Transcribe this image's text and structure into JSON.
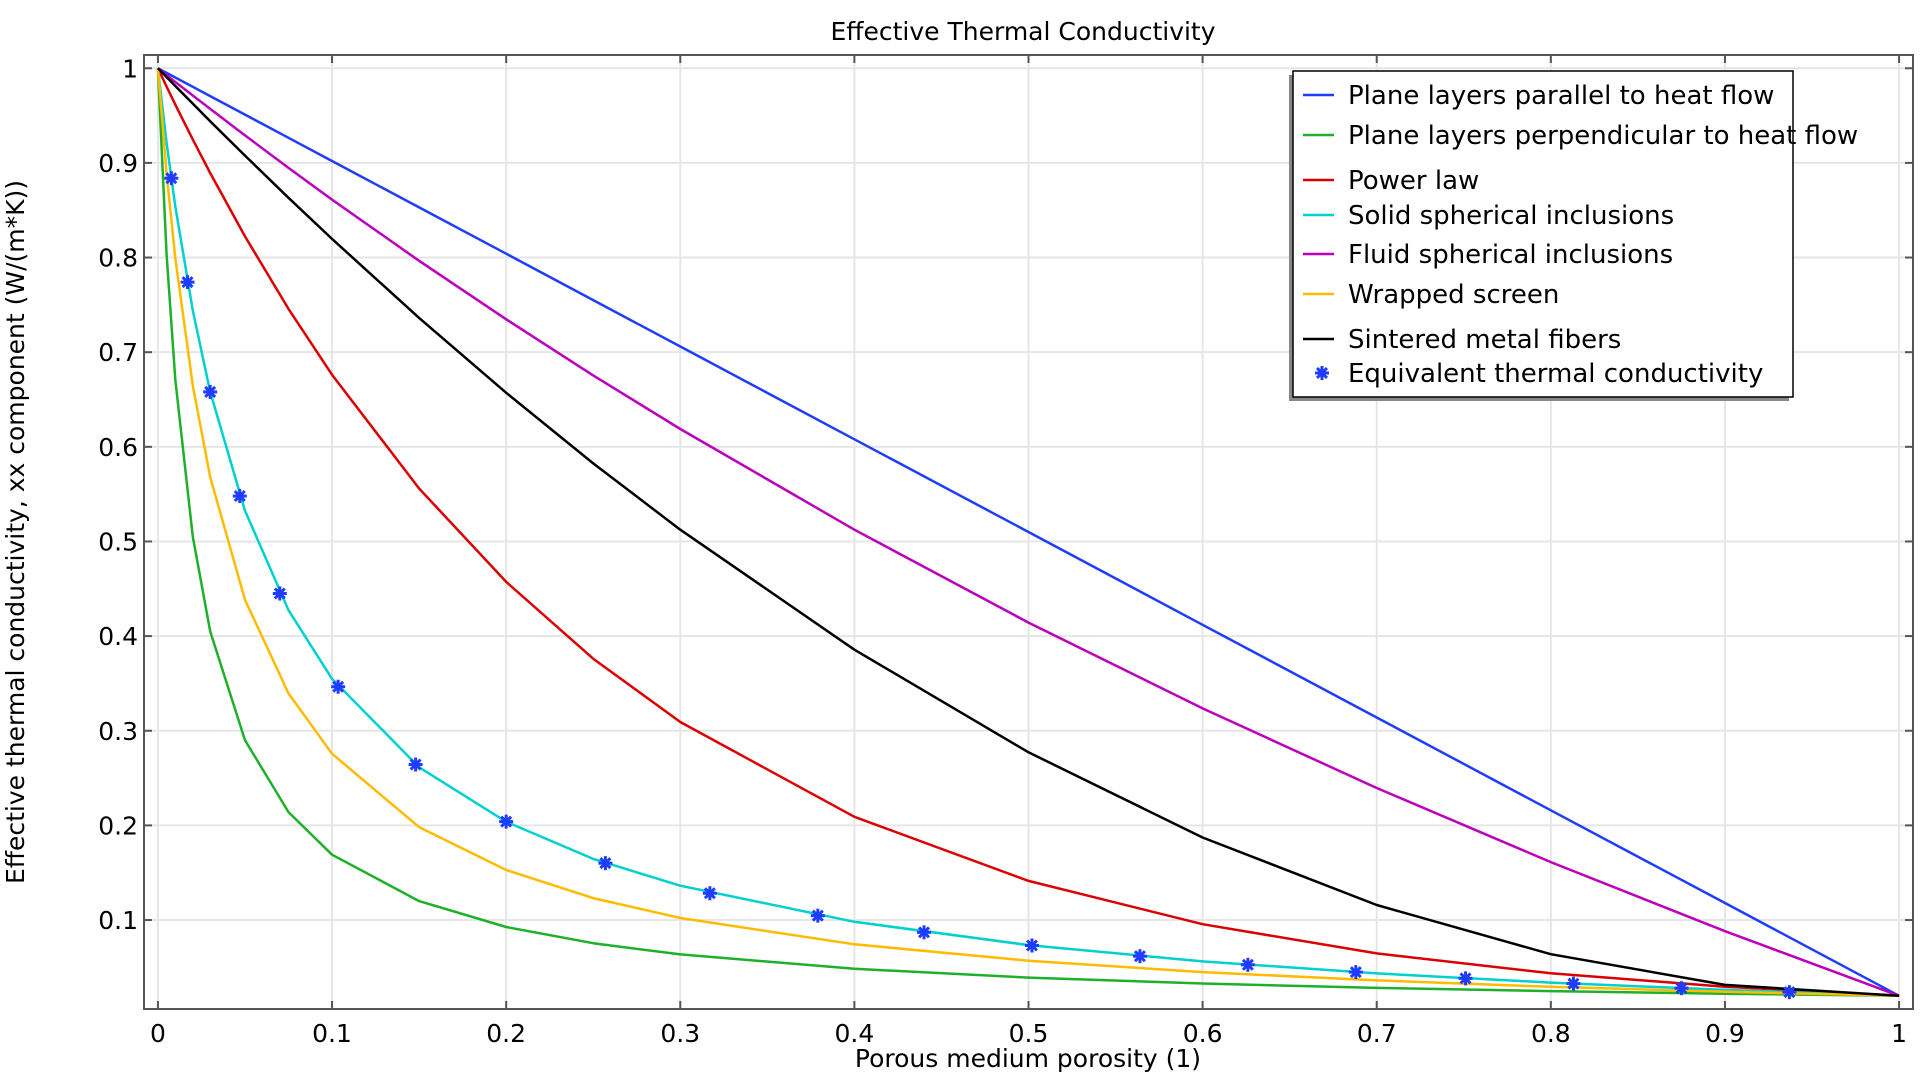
{
  "chart_data": {
    "type": "line",
    "title": "Effective Thermal Conductivity",
    "xlabel": "Porous medium porosity (1)",
    "ylabel": "Effective thermal conductivity, xx component (W/(m*K))",
    "xlim": [
      -0.008,
      1.008
    ],
    "ylim": [
      0.006,
      1.014
    ],
    "grid": true,
    "legend_position": "top-right",
    "x_ticks": [
      "0",
      "0.1",
      "0.2",
      "0.3",
      "0.4",
      "0.5",
      "0.6",
      "0.7",
      "0.8",
      "0.9",
      "1"
    ],
    "x_tick_values": [
      0,
      0.1,
      0.2,
      0.3,
      0.4,
      0.5,
      0.6,
      0.7,
      0.8,
      0.9,
      1
    ],
    "y_ticks": [
      "0.1",
      "0.2",
      "0.3",
      "0.4",
      "0.5",
      "0.6",
      "0.7",
      "0.8",
      "0.9",
      "1"
    ],
    "y_tick_values": [
      0.1,
      0.2,
      0.3,
      0.4,
      0.5,
      0.6,
      0.7,
      0.8,
      0.9,
      1
    ],
    "x": [
      0,
      0.005,
      0.01,
      0.02,
      0.03,
      0.05,
      0.075,
      0.1,
      0.15,
      0.2,
      0.25,
      0.3,
      0.4,
      0.5,
      0.6,
      0.7,
      0.8,
      0.9,
      1
    ],
    "series": [
      {
        "name": "Plane layers parallel to heat flow",
        "color": "#1f3dff",
        "values": [
          1,
          0.9951,
          0.9902,
          0.9804,
          0.9706,
          0.951,
          0.9265,
          0.902,
          0.853,
          0.804,
          0.755,
          0.706,
          0.608,
          0.51,
          0.412,
          0.314,
          0.216,
          0.118,
          0.02
        ]
      },
      {
        "name": "Plane layers perpendicular to heat flow",
        "color": "#1fb02a",
        "values": [
          1,
          0.803,
          0.671,
          0.505,
          0.405,
          0.29,
          0.214,
          0.169,
          0.12,
          0.0926,
          0.0755,
          0.0637,
          0.0485,
          0.0392,
          0.0329,
          0.0283,
          0.0249,
          0.0222,
          0.02
        ]
      },
      {
        "name": "Power law",
        "color": "#dd0000",
        "values": [
          1,
          0.9806,
          0.9616,
          0.9247,
          0.8893,
          0.8223,
          0.7457,
          0.6762,
          0.556,
          0.4573,
          0.3761,
          0.3092,
          0.2091,
          0.1414,
          0.0956,
          0.0647,
          0.0437,
          0.0296,
          0.02
        ]
      },
      {
        "name": "Solid spherical inclusions",
        "color": "#00d0d0",
        "values": [
          1,
          0.921,
          0.854,
          0.744,
          0.658,
          0.5325,
          0.4274,
          0.3549,
          0.2614,
          0.2038,
          0.1646,
          0.1363,
          0.0981,
          0.0735,
          0.0563,
          0.0436,
          0.0339,
          0.0262,
          0.02
        ]
      },
      {
        "name": "Fluid spherical inclusions",
        "color": "#bb00bb",
        "values": [
          1,
          0.9927,
          0.9855,
          0.9712,
          0.957,
          0.929,
          0.8947,
          0.8612,
          0.7965,
          0.7347,
          0.6755,
          0.6188,
          0.5124,
          0.4143,
          0.3236,
          0.2395,
          0.1612,
          0.0882,
          0.02
        ]
      },
      {
        "name": "Wrapped screen",
        "color": "#ffbb00",
        "values": [
          1,
          0.8887,
          0.7993,
          0.6646,
          0.5679,
          0.4384,
          0.3395,
          0.2757,
          0.1982,
          0.1529,
          0.1232,
          0.1022,
          0.0744,
          0.057,
          0.045,
          0.0362,
          0.0295,
          0.0243,
          0.02
        ]
      },
      {
        "name": "Sintered metal fibers",
        "color": "#000000",
        "values": [
          1,
          0.9906,
          0.9812,
          0.9626,
          0.944,
          0.9077,
          0.8631,
          0.8197,
          0.7362,
          0.6571,
          0.5825,
          0.5124,
          0.3856,
          0.2772,
          0.1872,
          0.1159,
          0.0639,
          0.0315,
          0.02
        ]
      }
    ],
    "markers": {
      "name": "Equivalent thermal conductivity",
      "color": "#1f3dff",
      "x": [
        0.0077,
        0.017,
        0.03,
        0.047,
        0.07,
        0.1035,
        0.148,
        0.2,
        0.257,
        0.317,
        0.379,
        0.44,
        0.502,
        0.564,
        0.626,
        0.688,
        0.751,
        0.813,
        0.875,
        0.937
      ],
      "y": [
        0.8838,
        0.774,
        0.658,
        0.548,
        0.445,
        0.3465,
        0.2643,
        0.204,
        0.1601,
        0.1283,
        0.1046,
        0.087,
        0.0731,
        0.0618,
        0.0527,
        0.045,
        0.0384,
        0.0328,
        0.028,
        0.0238
      ]
    }
  }
}
